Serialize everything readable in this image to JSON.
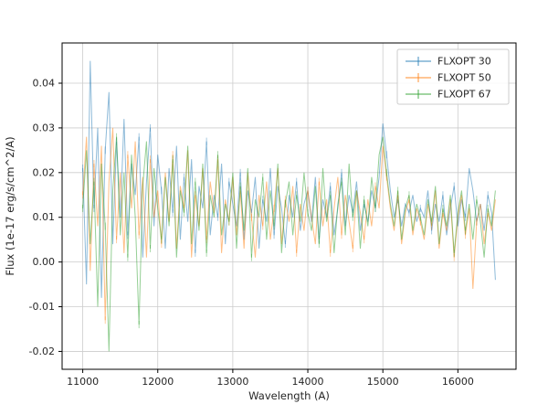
{
  "figure": {
    "background": "#ffffff",
    "plot_background": "#ffffff"
  },
  "chart_data": {
    "type": "line",
    "title": "",
    "xlabel": "Wavelength (A)",
    "ylabel": "Flux (1e-17 erg/s/cm^2/A)",
    "xlim": [
      10725,
      16775
    ],
    "ylim": [
      -0.024,
      0.049
    ],
    "xticks": [
      11000,
      12000,
      13000,
      14000,
      15000,
      16000
    ],
    "xtick_labels": [
      "11000",
      "12000",
      "13000",
      "14000",
      "15000",
      "16000"
    ],
    "yticks": [
      -0.02,
      -0.01,
      0,
      0.01,
      0.02,
      0.03,
      0.04
    ],
    "ytick_labels": [
      "-0.02",
      "-0.01",
      "0.00",
      "0.01",
      "0.02",
      "0.03",
      "0.04"
    ],
    "grid": true,
    "grid_color": "#cccccc",
    "legend_position": "upper right",
    "x_start": 11000,
    "x_step": 50,
    "series": [
      {
        "name": "FLXOPT 30",
        "color": "#1f77b4",
        "opacity": 0.5,
        "values": [
          0.021,
          -0.005,
          0.045,
          0.012,
          0.03,
          -0.008,
          0.025,
          0.038,
          0.004,
          0.027,
          0.01,
          0.032,
          0.006,
          0.022,
          0.015,
          0.028,
          0.001,
          0.018,
          0.03,
          0.008,
          0.024,
          0.016,
          0.003,
          0.021,
          0.011,
          0.026,
          0.005,
          0.019,
          0.009,
          0.023,
          0.002,
          0.017,
          0.012,
          0.027,
          0.006,
          0.015,
          0.01,
          0.022,
          0.004,
          0.018,
          0.013,
          0.008,
          0.02,
          0.005,
          0.016,
          0.011,
          0.019,
          0.003,
          0.014,
          0.009,
          0.021,
          0.006,
          0.017,
          0.012,
          0.004,
          0.015,
          0.01,
          0.018,
          0.007,
          0.013,
          0.016,
          0.009,
          0.019,
          0.005,
          0.014,
          0.01,
          0.017,
          0.006,
          0.012,
          0.02,
          0.008,
          0.015,
          0.011,
          0.018,
          0.007,
          0.013,
          0.009,
          0.016,
          0.012,
          0.019,
          0.031,
          0.024,
          0.016,
          0.01,
          0.014,
          0.008,
          0.013,
          0.011,
          0.015,
          0.009,
          0.012,
          0.01,
          0.016,
          0.007,
          0.013,
          0.009,
          0.015,
          0.006,
          0.012,
          0.017,
          0.008,
          0.014,
          0.01,
          0.021,
          0.016,
          0.009,
          0.013,
          0.007,
          0.015,
          0.011,
          -0.004
        ]
      },
      {
        "name": "FLXOPT 50",
        "color": "#ff7f0e",
        "opacity": 0.5,
        "values": [
          0.015,
          0.028,
          -0.002,
          0.022,
          0.008,
          0.026,
          -0.013,
          0.018,
          0.03,
          0.005,
          0.02,
          0.002,
          0.024,
          0.012,
          0.027,
          0.006,
          0.019,
          0.001,
          0.023,
          0.01,
          0.016,
          0.004,
          0.02,
          0.009,
          0.024,
          0.003,
          0.017,
          0.012,
          0.025,
          0.001,
          0.015,
          0.008,
          0.021,
          0.005,
          0.018,
          0.011,
          0.023,
          0.002,
          0.014,
          0.009,
          0.019,
          0.006,
          0.016,
          0.003,
          0.02,
          0.01,
          0.001,
          0.015,
          0.008,
          0.018,
          0.005,
          0.012,
          0.021,
          0.004,
          0.014,
          0.009,
          0.017,
          0.002,
          0.013,
          0.007,
          0.016,
          0.01,
          0.004,
          0.018,
          0.008,
          0.014,
          0.002,
          0.012,
          0.019,
          0.006,
          0.015,
          0.009,
          0.003,
          0.016,
          0.011,
          0.005,
          0.014,
          0.008,
          0.017,
          0.012,
          0.026,
          0.019,
          0.012,
          0.007,
          0.015,
          0.004,
          0.011,
          0.014,
          0.006,
          0.012,
          0.009,
          0.005,
          0.013,
          0.008,
          0.016,
          0.003,
          0.011,
          0.007,
          0.014,
          0.001,
          0.01,
          0.015,
          0.006,
          0.012,
          -0.006,
          0.009,
          0.013,
          0.004,
          0.011,
          0.007,
          0.014
        ]
      },
      {
        "name": "FLXOPT 67",
        "color": "#2ca02c",
        "opacity": 0.5,
        "values": [
          0.012,
          0.025,
          0.004,
          0.018,
          -0.01,
          0.022,
          0.008,
          -0.02,
          0.016,
          0.028,
          0.006,
          0.02,
          0.001,
          0.024,
          0.01,
          -0.014,
          0.017,
          0.027,
          0.003,
          0.021,
          0.012,
          0.005,
          0.019,
          0.008,
          0.023,
          0.001,
          0.016,
          0.011,
          0.026,
          0.004,
          0.018,
          0.007,
          0.022,
          0.002,
          0.015,
          0.01,
          0.024,
          0.006,
          0.013,
          0.009,
          0.02,
          0.003,
          0.017,
          0.007,
          0.021,
          0.001,
          0.014,
          0.01,
          0.019,
          0.005,
          0.016,
          0.008,
          0.022,
          0.002,
          0.013,
          0.018,
          0.006,
          0.015,
          0.009,
          0.02,
          0.011,
          0.007,
          0.017,
          0.004,
          0.021,
          0.009,
          0.015,
          0.002,
          0.013,
          0.018,
          0.006,
          0.022,
          0.01,
          0.016,
          0.003,
          0.014,
          0.008,
          0.019,
          0.012,
          0.024,
          0.028,
          0.02,
          0.013,
          0.008,
          0.016,
          0.005,
          0.012,
          0.015,
          0.007,
          0.013,
          0.01,
          0.006,
          0.014,
          0.009,
          0.017,
          0.004,
          0.012,
          0.008,
          0.015,
          0.002,
          0.011,
          0.016,
          0.007,
          0.013,
          0.005,
          0.014,
          0.009,
          0.001,
          0.012,
          0.008,
          0.016
        ]
      }
    ]
  }
}
